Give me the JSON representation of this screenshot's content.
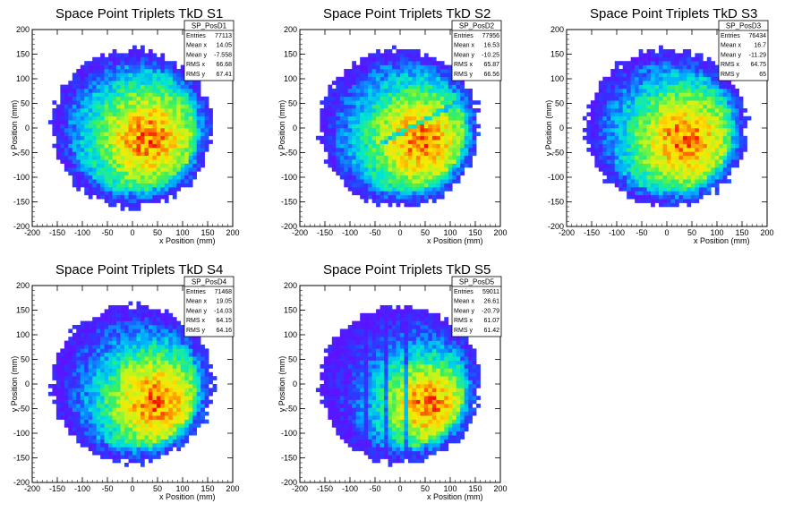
{
  "chart_data": [
    {
      "type": "heatmap",
      "title": "Space Point Triplets TkD S1",
      "xlabel": "x Position (mm)",
      "ylabel": "y Position (mm)",
      "xlim": [
        -200,
        200
      ],
      "ylim": [
        -200,
        200
      ],
      "xticks": [
        -200,
        -150,
        -100,
        -50,
        0,
        50,
        100,
        150,
        200
      ],
      "yticks": [
        -200,
        -150,
        -100,
        -50,
        0,
        50,
        100,
        150,
        200
      ],
      "stats": {
        "name": "SP_PosD1",
        "rows": [
          {
            "label": "Entries",
            "value": "77113"
          },
          {
            "label": "Mean x",
            "value": "14.05"
          },
          {
            "label": "Mean y",
            "value": "-7.558"
          },
          {
            "label": "RMS x",
            "value": "66.68"
          },
          {
            "label": "RMS y",
            "value": "67.41"
          }
        ]
      },
      "distribution": {
        "radius": 160,
        "center_x": 30,
        "center_y": -20,
        "sigma": 95,
        "gaps": [],
        "stripe": false
      }
    },
    {
      "type": "heatmap",
      "title": "Space Point Triplets TkD S2",
      "xlabel": "x Position (mm)",
      "ylabel": "y Position (mm)",
      "xlim": [
        -200,
        200
      ],
      "ylim": [
        -200,
        200
      ],
      "xticks": [
        -200,
        -150,
        -100,
        -50,
        0,
        50,
        100,
        150,
        200
      ],
      "yticks": [
        -200,
        -150,
        -100,
        -50,
        0,
        50,
        100,
        150,
        200
      ],
      "stats": {
        "name": "SP_PosD2",
        "rows": [
          {
            "label": "Entries",
            "value": "77956"
          },
          {
            "label": "Mean x",
            "value": "16.53"
          },
          {
            "label": "Mean y",
            "value": "-10.25"
          },
          {
            "label": "RMS x",
            "value": "65.87"
          },
          {
            "label": "RMS y",
            "value": "66.56"
          }
        ]
      },
      "distribution": {
        "radius": 160,
        "center_x": 40,
        "center_y": -25,
        "sigma": 95,
        "gaps": [],
        "stripe": true
      }
    },
    {
      "type": "heatmap",
      "title": "Space Point Triplets TkD S3",
      "xlabel": "x Position (mm)",
      "ylabel": "y Position (mm)",
      "xlim": [
        -200,
        200
      ],
      "ylim": [
        -200,
        200
      ],
      "xticks": [
        -200,
        -150,
        -100,
        -50,
        0,
        50,
        100,
        150,
        200
      ],
      "yticks": [
        -200,
        -150,
        -100,
        -50,
        0,
        50,
        100,
        150,
        200
      ],
      "stats": {
        "name": "SP_PosD3",
        "rows": [
          {
            "label": "Entries",
            "value": "76434"
          },
          {
            "label": "Mean x",
            "value": "16.7"
          },
          {
            "label": "Mean y",
            "value": "-11.29"
          },
          {
            "label": "RMS x",
            "value": "64.75"
          },
          {
            "label": "RMS y",
            "value": "65"
          }
        ]
      },
      "distribution": {
        "radius": 160,
        "center_x": 35,
        "center_y": -25,
        "sigma": 95,
        "gaps": [],
        "stripe": false
      }
    },
    {
      "type": "heatmap",
      "title": "Space Point Triplets TkD S4",
      "xlabel": "x Position (mm)",
      "ylabel": "y Position (mm)",
      "xlim": [
        -200,
        200
      ],
      "ylim": [
        -200,
        200
      ],
      "xticks": [
        -200,
        -150,
        -100,
        -50,
        0,
        50,
        100,
        150,
        200
      ],
      "yticks": [
        -200,
        -150,
        -100,
        -50,
        0,
        50,
        100,
        150,
        200
      ],
      "stats": {
        "name": "SP_PosD4",
        "rows": [
          {
            "label": "Entries",
            "value": "71468"
          },
          {
            "label": "Mean x",
            "value": "19.05"
          },
          {
            "label": "Mean y",
            "value": "-14.03"
          },
          {
            "label": "RMS x",
            "value": "64.15"
          },
          {
            "label": "RMS y",
            "value": "64.16"
          }
        ]
      },
      "distribution": {
        "radius": 160,
        "center_x": 45,
        "center_y": -35,
        "sigma": 90,
        "gaps": [],
        "stripe": false
      }
    },
    {
      "type": "heatmap",
      "title": "Space Point Triplets TkD S5",
      "xlabel": "x Position (mm)",
      "ylabel": "y Position (mm)",
      "xlim": [
        -200,
        200
      ],
      "ylim": [
        -200,
        200
      ],
      "xticks": [
        -200,
        -150,
        -100,
        -50,
        0,
        50,
        100,
        150,
        200
      ],
      "yticks": [
        -200,
        -150,
        -100,
        -50,
        0,
        50,
        100,
        150,
        200
      ],
      "stats": {
        "name": "SP_PosD5",
        "rows": [
          {
            "label": "Entries",
            "value": "59011"
          },
          {
            "label": "Mean x",
            "value": "26.61"
          },
          {
            "label": "Mean y",
            "value": "-20.79"
          },
          {
            "label": "RMS x",
            "value": "61.07"
          },
          {
            "label": "RMS y",
            "value": "61.42"
          }
        ]
      },
      "distribution": {
        "radius": 160,
        "center_x": 55,
        "center_y": -40,
        "sigma": 80,
        "gaps": [
          -130,
          -110,
          -70,
          -30,
          10
        ],
        "stripe": false
      }
    }
  ]
}
